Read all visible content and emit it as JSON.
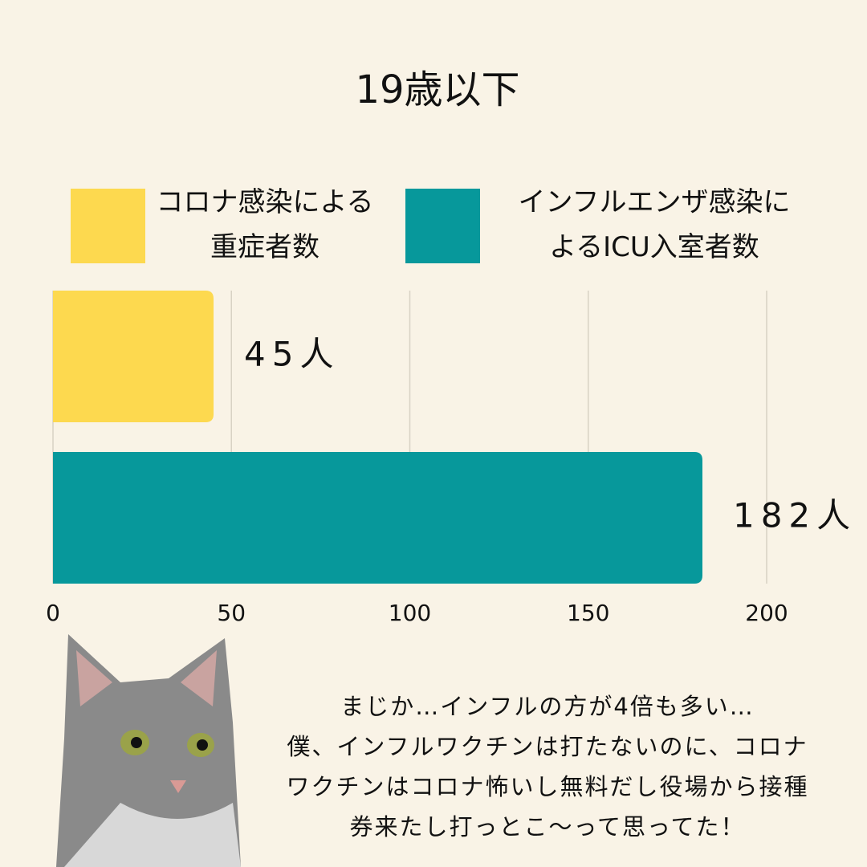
{
  "chart_data": {
    "type": "bar",
    "orientation": "horizontal",
    "title": "19歳以下",
    "series": [
      {
        "name": "コロナ感染による重症者数",
        "color": "#fdd94f",
        "values": [
          45
        ],
        "value_labels": [
          "45人"
        ]
      },
      {
        "name": "インフルエンザ感染によるICU入室者数",
        "color": "#07989b",
        "values": [
          182
        ],
        "value_labels": [
          "182人"
        ]
      }
    ],
    "xlim": [
      0,
      200
    ],
    "xticks": [
      0,
      50,
      100,
      150,
      200
    ],
    "grid": true,
    "annotations": [
      "まじか…インフルの方が4倍も多い…",
      "僕、インフルワクチンは打たないのに、コロナ",
      "ワクチンはコロナ怖いし無料だし役場から接種",
      "券来たし打っとこ〜って思ってた！"
    ]
  }
}
